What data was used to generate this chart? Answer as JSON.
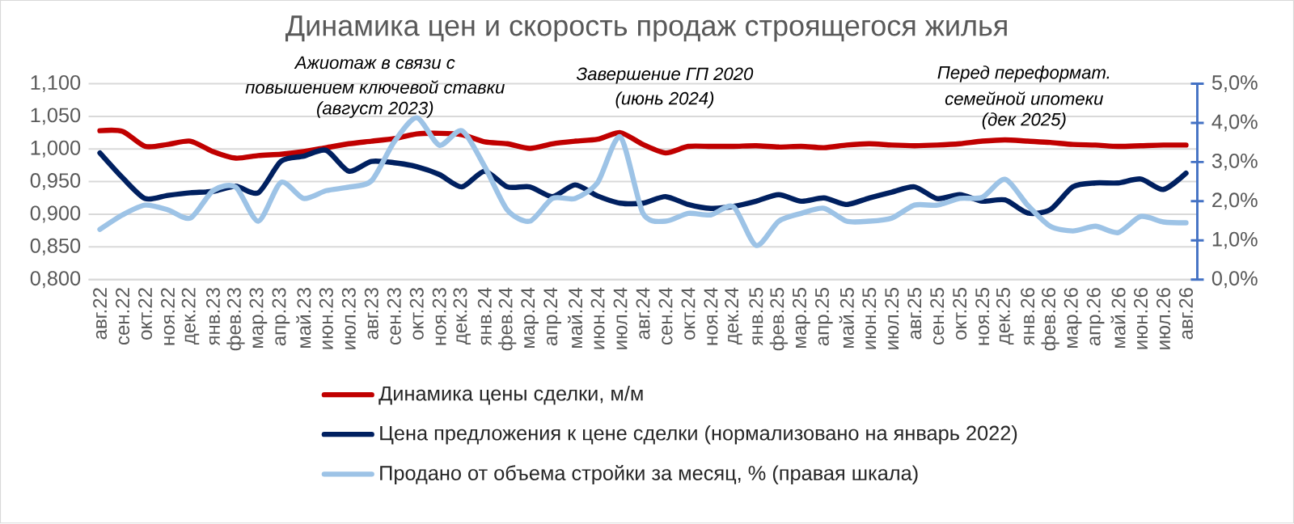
{
  "chart_data": {
    "type": "line",
    "title": "Динамика цен и скорость продаж строящегося жилья",
    "categories": [
      "авг.22",
      "сен.22",
      "окт.22",
      "ноя.22",
      "дек.22",
      "янв.23",
      "фев.23",
      "мар.23",
      "апр.23",
      "май.23",
      "июн.23",
      "июл.23",
      "авг.23",
      "сен.23",
      "окт.23",
      "ноя.23",
      "дек.23",
      "янв.24",
      "фев.24",
      "мар.24",
      "апр.24",
      "май.24",
      "июн.24",
      "июл.24",
      "авг.24",
      "сен.24",
      "окт.24",
      "ноя.24",
      "дек.24",
      "янв.25",
      "фев.25",
      "мар.25",
      "апр.25",
      "май.25",
      "июн.25",
      "июл.25",
      "авг.25",
      "сен.25",
      "окт.25",
      "ноя.25",
      "дек.25",
      "янв.26",
      "фев.26",
      "мар.26",
      "апр.26",
      "май.26",
      "июн.26",
      "июл.26",
      "авг.26"
    ],
    "series": [
      {
        "name": "Динамика цены сделки, м/м",
        "color": "#c00000",
        "values": [
          1.028,
          1.027,
          1.004,
          1.007,
          1.012,
          0.996,
          0.986,
          0.99,
          0.992,
          0.996,
          1.002,
          1.008,
          1.012,
          1.016,
          1.023,
          1.024,
          1.022,
          1.011,
          1.008,
          1.001,
          1.008,
          1.012,
          1.015,
          1.025,
          1.007,
          0.994,
          1.004,
          1.004,
          1.004,
          1.005,
          1.003,
          1.004,
          1.002,
          1.006,
          1.008,
          1.006,
          1.005,
          1.006,
          1.008,
          1.012,
          1.014,
          1.012,
          1.01,
          1.007,
          1.006,
          1.004,
          1.005,
          1.006,
          1.006
        ]
      },
      {
        "name": "Цена предложения к цене сделки (нормализовано на январь 2022)",
        "color": "#002060",
        "values": [
          0.994,
          0.956,
          0.924,
          0.929,
          0.933,
          0.935,
          0.943,
          0.933,
          0.981,
          0.989,
          0.998,
          0.966,
          0.981,
          0.979,
          0.973,
          0.961,
          0.942,
          0.966,
          0.942,
          0.942,
          0.927,
          0.945,
          0.928,
          0.917,
          0.917,
          0.927,
          0.915,
          0.909,
          0.912,
          0.92,
          0.93,
          0.92,
          0.925,
          0.915,
          0.925,
          0.934,
          0.942,
          0.924,
          0.93,
          0.92,
          0.922,
          0.902,
          0.907,
          0.942,
          0.948,
          0.948,
          0.954,
          0.938,
          0.963
        ]
      },
      {
        "name": "Продано от объема стройки за месяц, % (правая шкала)",
        "color": "#9dc3e6",
        "axis": "y2",
        "values": [
          1.28,
          1.65,
          1.9,
          1.78,
          1.57,
          2.27,
          2.36,
          1.49,
          2.48,
          2.07,
          2.27,
          2.36,
          2.52,
          3.51,
          4.13,
          3.43,
          3.8,
          2.89,
          1.78,
          1.49,
          2.07,
          2.07,
          2.48,
          3.64,
          1.69,
          1.49,
          1.69,
          1.65,
          1.86,
          0.87,
          1.49,
          1.69,
          1.82,
          1.49,
          1.49,
          1.57,
          1.9,
          1.9,
          2.07,
          2.1,
          2.56,
          1.9,
          1.36,
          1.24,
          1.36,
          1.2,
          1.61,
          1.47,
          1.45
        ]
      }
    ],
    "ylim": [
      0.8,
      1.1
    ],
    "yticks": [
      {
        "value": 0.8,
        "label": "0,800"
      },
      {
        "value": 0.85,
        "label": "0,850"
      },
      {
        "value": 0.9,
        "label": "0,900"
      },
      {
        "value": 0.95,
        "label": "0,950"
      },
      {
        "value": 1.0,
        "label": "1,000"
      },
      {
        "value": 1.05,
        "label": "1,050"
      },
      {
        "value": 1.1,
        "label": "1,100"
      }
    ],
    "y2lim": [
      0,
      5
    ],
    "y2ticks": [
      {
        "value": 0,
        "label": "0,0%"
      },
      {
        "value": 1,
        "label": "1,0%"
      },
      {
        "value": 2,
        "label": "2,0%"
      },
      {
        "value": 3,
        "label": "3,0%"
      },
      {
        "value": 4,
        "label": "4,0%"
      },
      {
        "value": 5,
        "label": "5,0%"
      }
    ],
    "annotations": [
      "Ажиотаж в связи с",
      "повышением ключевой ставки",
      "(август 2023)",
      "Завершение ГП 2020",
      "(июнь 2024)",
      "Перед переформат.",
      "семейной ипотеки",
      "(дек 2025)"
    ],
    "grid": "y",
    "legend": "bottom"
  }
}
